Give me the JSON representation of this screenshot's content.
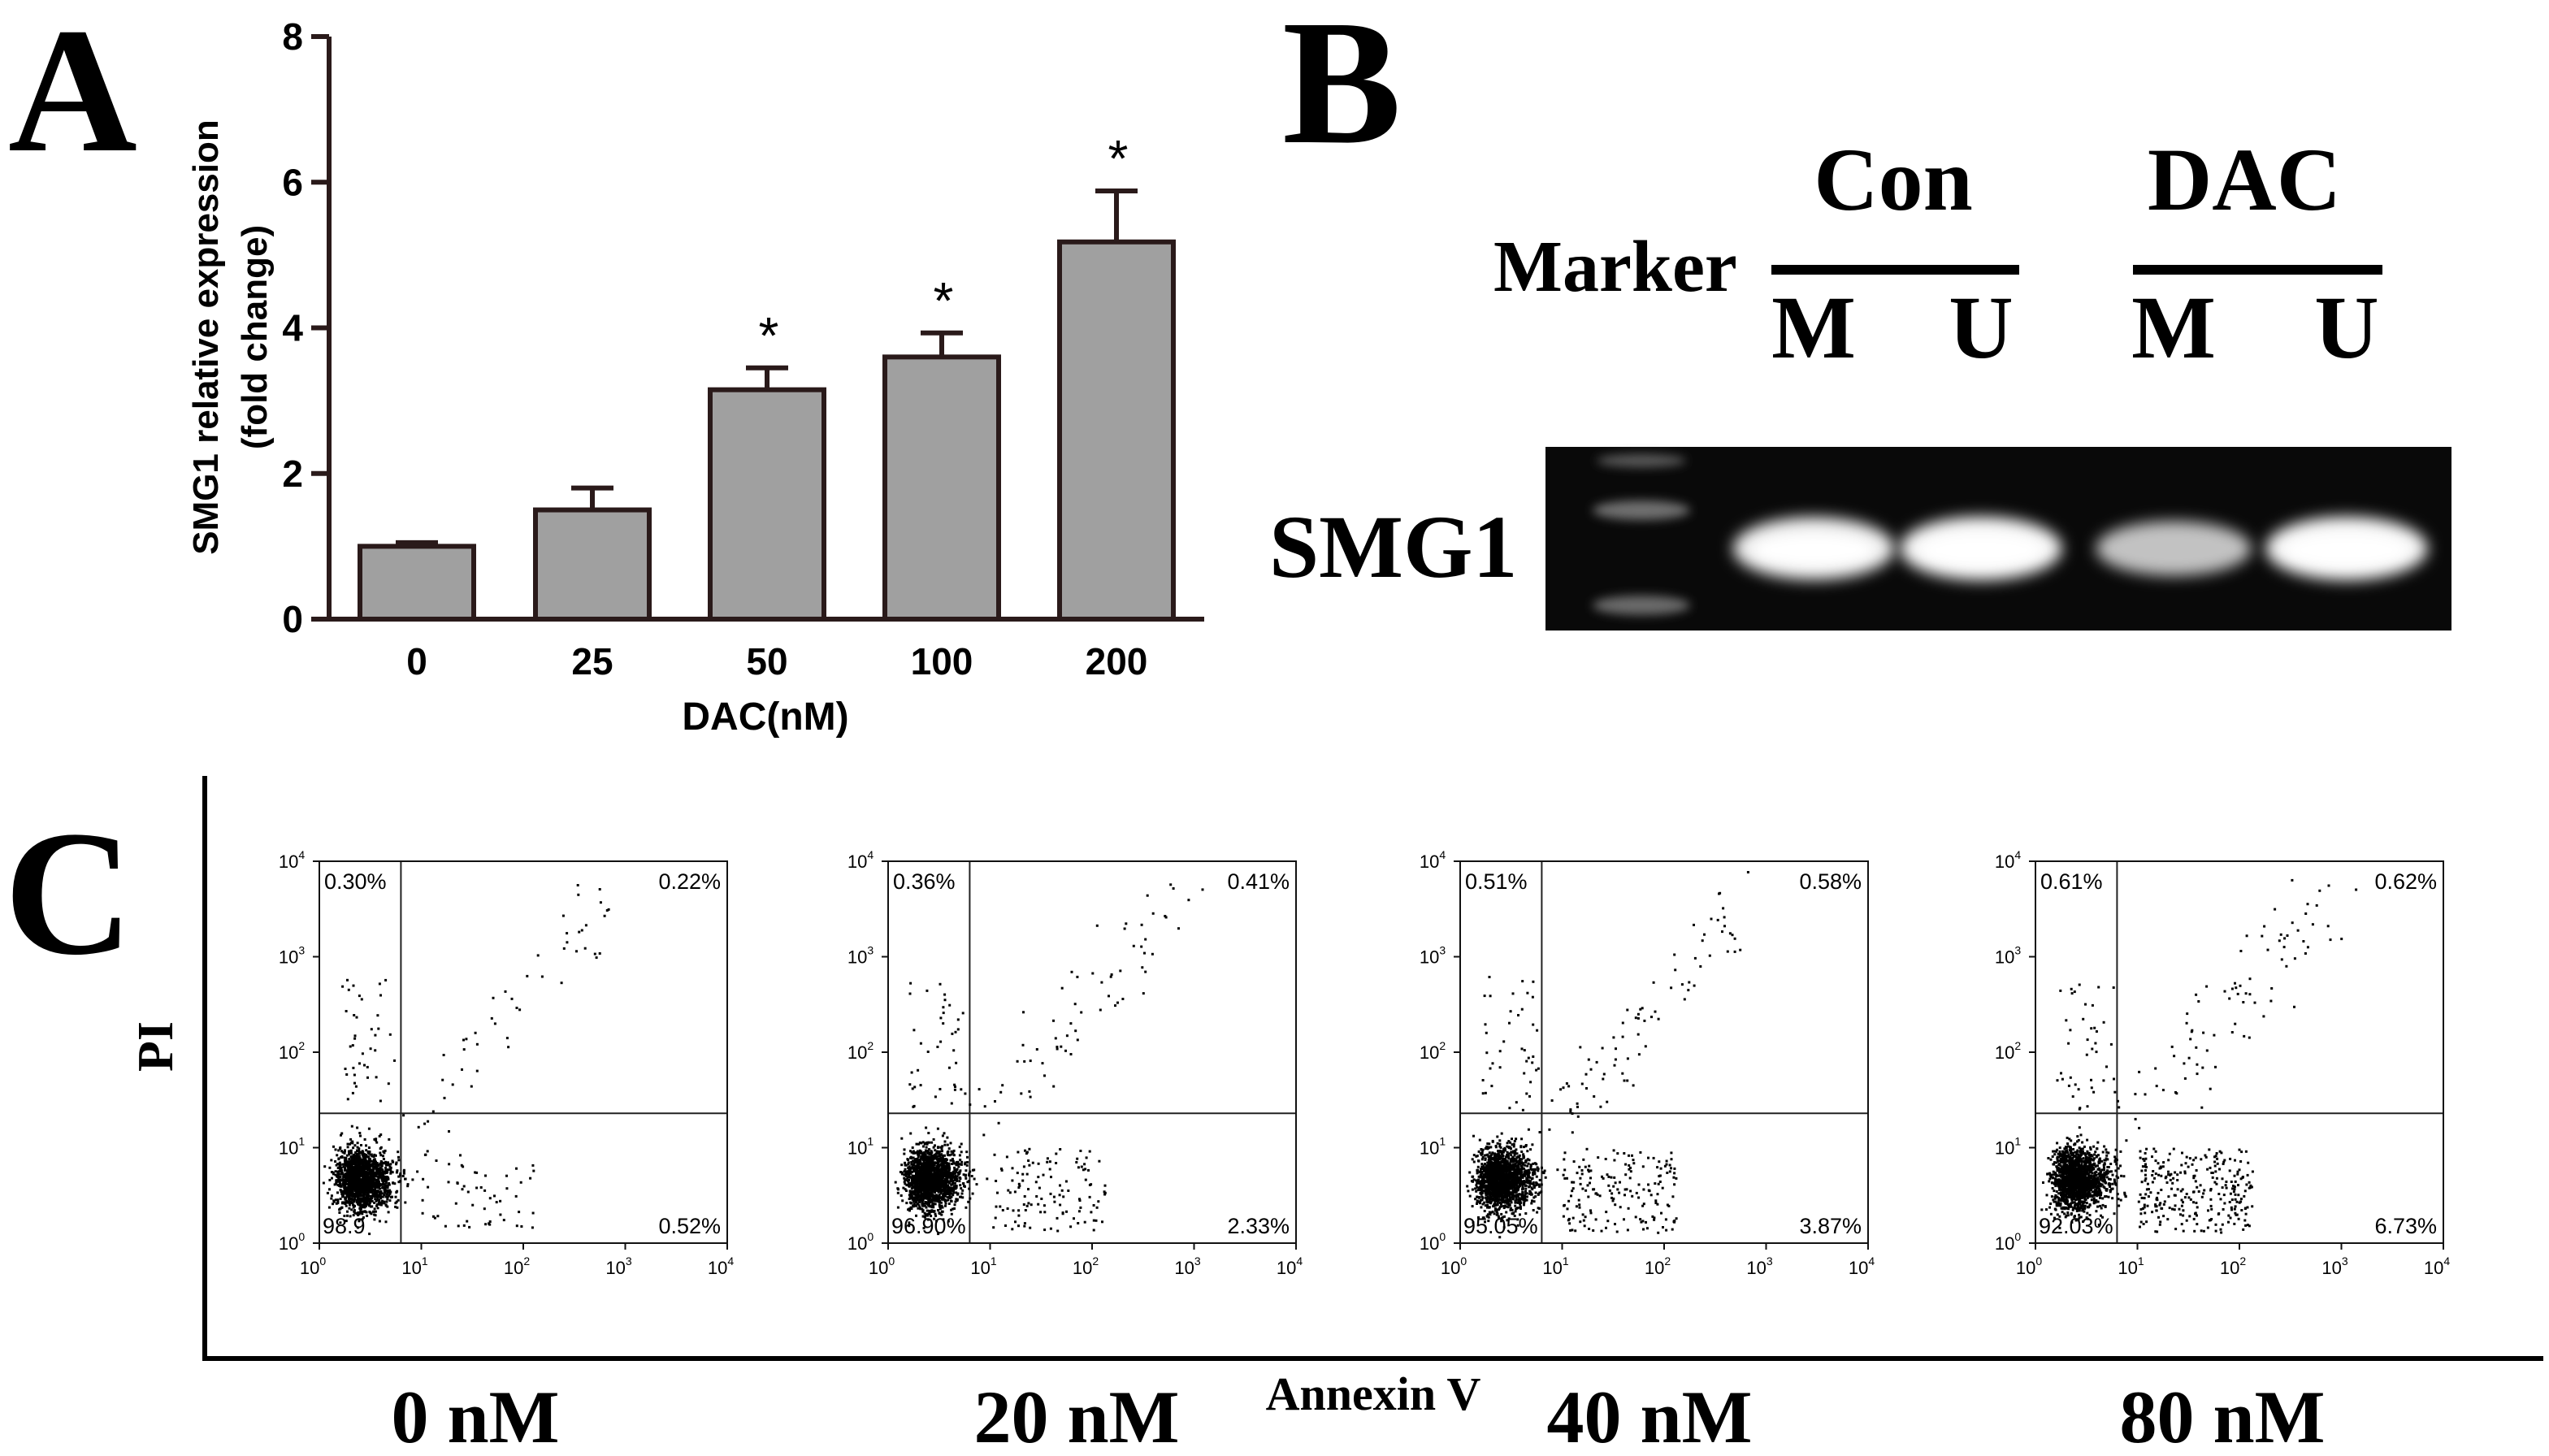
{
  "panels": {
    "a_label": "A",
    "b_label": "B",
    "c_label": "C"
  },
  "chart_data": [
    {
      "type": "bar",
      "panel": "A",
      "categories": [
        "0",
        "25",
        "50",
        "100",
        "200"
      ],
      "values": [
        1.0,
        1.5,
        3.15,
        3.6,
        5.18
      ],
      "errors": [
        0.05,
        0.3,
        0.3,
        0.33,
        0.7
      ],
      "significant": [
        false,
        false,
        true,
        true,
        true
      ],
      "sig_marker": "*",
      "ylim": [
        0,
        8
      ],
      "yticks": [
        "0",
        "2",
        "4",
        "6",
        "8"
      ],
      "ylabel_line1": "SMG1 relative expression",
      "ylabel_line2": "(fold change)",
      "xlabel": "DAC(nM)",
      "bar_color": "#a0a0a0"
    }
  ],
  "gel": {
    "group_con": "Con",
    "group_dac": "DAC",
    "marker_label": "Marker",
    "lane_labels": [
      "M",
      "U",
      "M",
      "U"
    ],
    "row_label": "SMG1",
    "band_intensity": [
      0.9,
      0.95,
      0.55,
      0.95
    ]
  },
  "flow": {
    "y_axis_label": "PI",
    "x_axis_label": "Annexin V",
    "tick_labels": [
      "10",
      "10",
      "10",
      "10",
      "10"
    ],
    "tick_exponents": [
      "0",
      "1",
      "2",
      "3",
      "4"
    ],
    "plots": [
      {
        "dose": "0 nM",
        "q_ul": "0.30%",
        "q_ur": "0.22%",
        "q_ll": "98.9",
        "q_lr": "0.52%"
      },
      {
        "dose": "20 nM",
        "q_ul": "0.36%",
        "q_ur": "0.41%",
        "q_ll": "96.90%",
        "q_lr": "2.33%"
      },
      {
        "dose": "40 nM",
        "q_ul": "0.51%",
        "q_ur": "0.58%",
        "q_ll": "95.05%",
        "q_lr": "3.87%"
      },
      {
        "dose": "80 nM",
        "q_ul": "0.61%",
        "q_ur": "0.62%",
        "q_ll": "92.03%",
        "q_lr": "6.73%"
      }
    ]
  }
}
